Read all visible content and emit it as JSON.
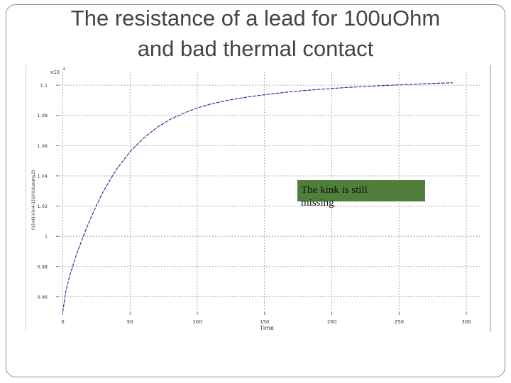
{
  "slide": {
    "title": "The resistance of a lead for 100uOhm\nand bad thermal contact",
    "callout": "The kink is still\nmissing"
  },
  "chart_data": {
    "type": "line",
    "title": "",
    "xlabel": "Time",
    "ylabel": "(V(n4)-V(n4-1))/I(Vdummy2)",
    "y_multiplier_label": "x10",
    "y_multiplier_exponent": "-4",
    "xlim": [
      -5,
      310
    ],
    "ylim": [
      0.948,
      1.1085
    ],
    "x_ticks": [
      0,
      50,
      100,
      150,
      200,
      250,
      300
    ],
    "y_ticks": [
      0.96,
      0.98,
      1,
      1.02,
      1.04,
      1.06,
      1.08,
      1.1
    ],
    "y_tick_labels": [
      "0.96",
      "0.98",
      "1",
      "1.02",
      "1.04",
      "1.06",
      "1.08",
      "1.1"
    ],
    "grid": true,
    "line_color": "#1a2a8c",
    "series": [
      {
        "x": [
          0,
          2,
          5,
          10,
          15,
          20,
          25,
          30,
          40,
          50,
          60,
          70,
          80,
          90,
          100,
          110,
          120,
          130,
          140,
          150,
          160,
          170,
          180,
          190,
          200,
          210,
          220,
          230,
          240,
          250,
          260,
          270,
          280,
          290
        ],
        "y": [
          0.95,
          0.9625,
          0.9735,
          0.9875,
          0.9995,
          1.0105,
          1.0205,
          1.0295,
          1.0445,
          1.056,
          1.065,
          1.072,
          1.0775,
          1.0815,
          1.085,
          1.0875,
          1.0895,
          1.0912,
          1.0925,
          1.0937,
          1.0947,
          1.0957,
          1.0965,
          1.0972,
          1.0978,
          1.0984,
          1.0989,
          1.0994,
          1.0998,
          1.1002,
          1.1006,
          1.101,
          1.1013,
          1.1016
        ]
      }
    ]
  }
}
